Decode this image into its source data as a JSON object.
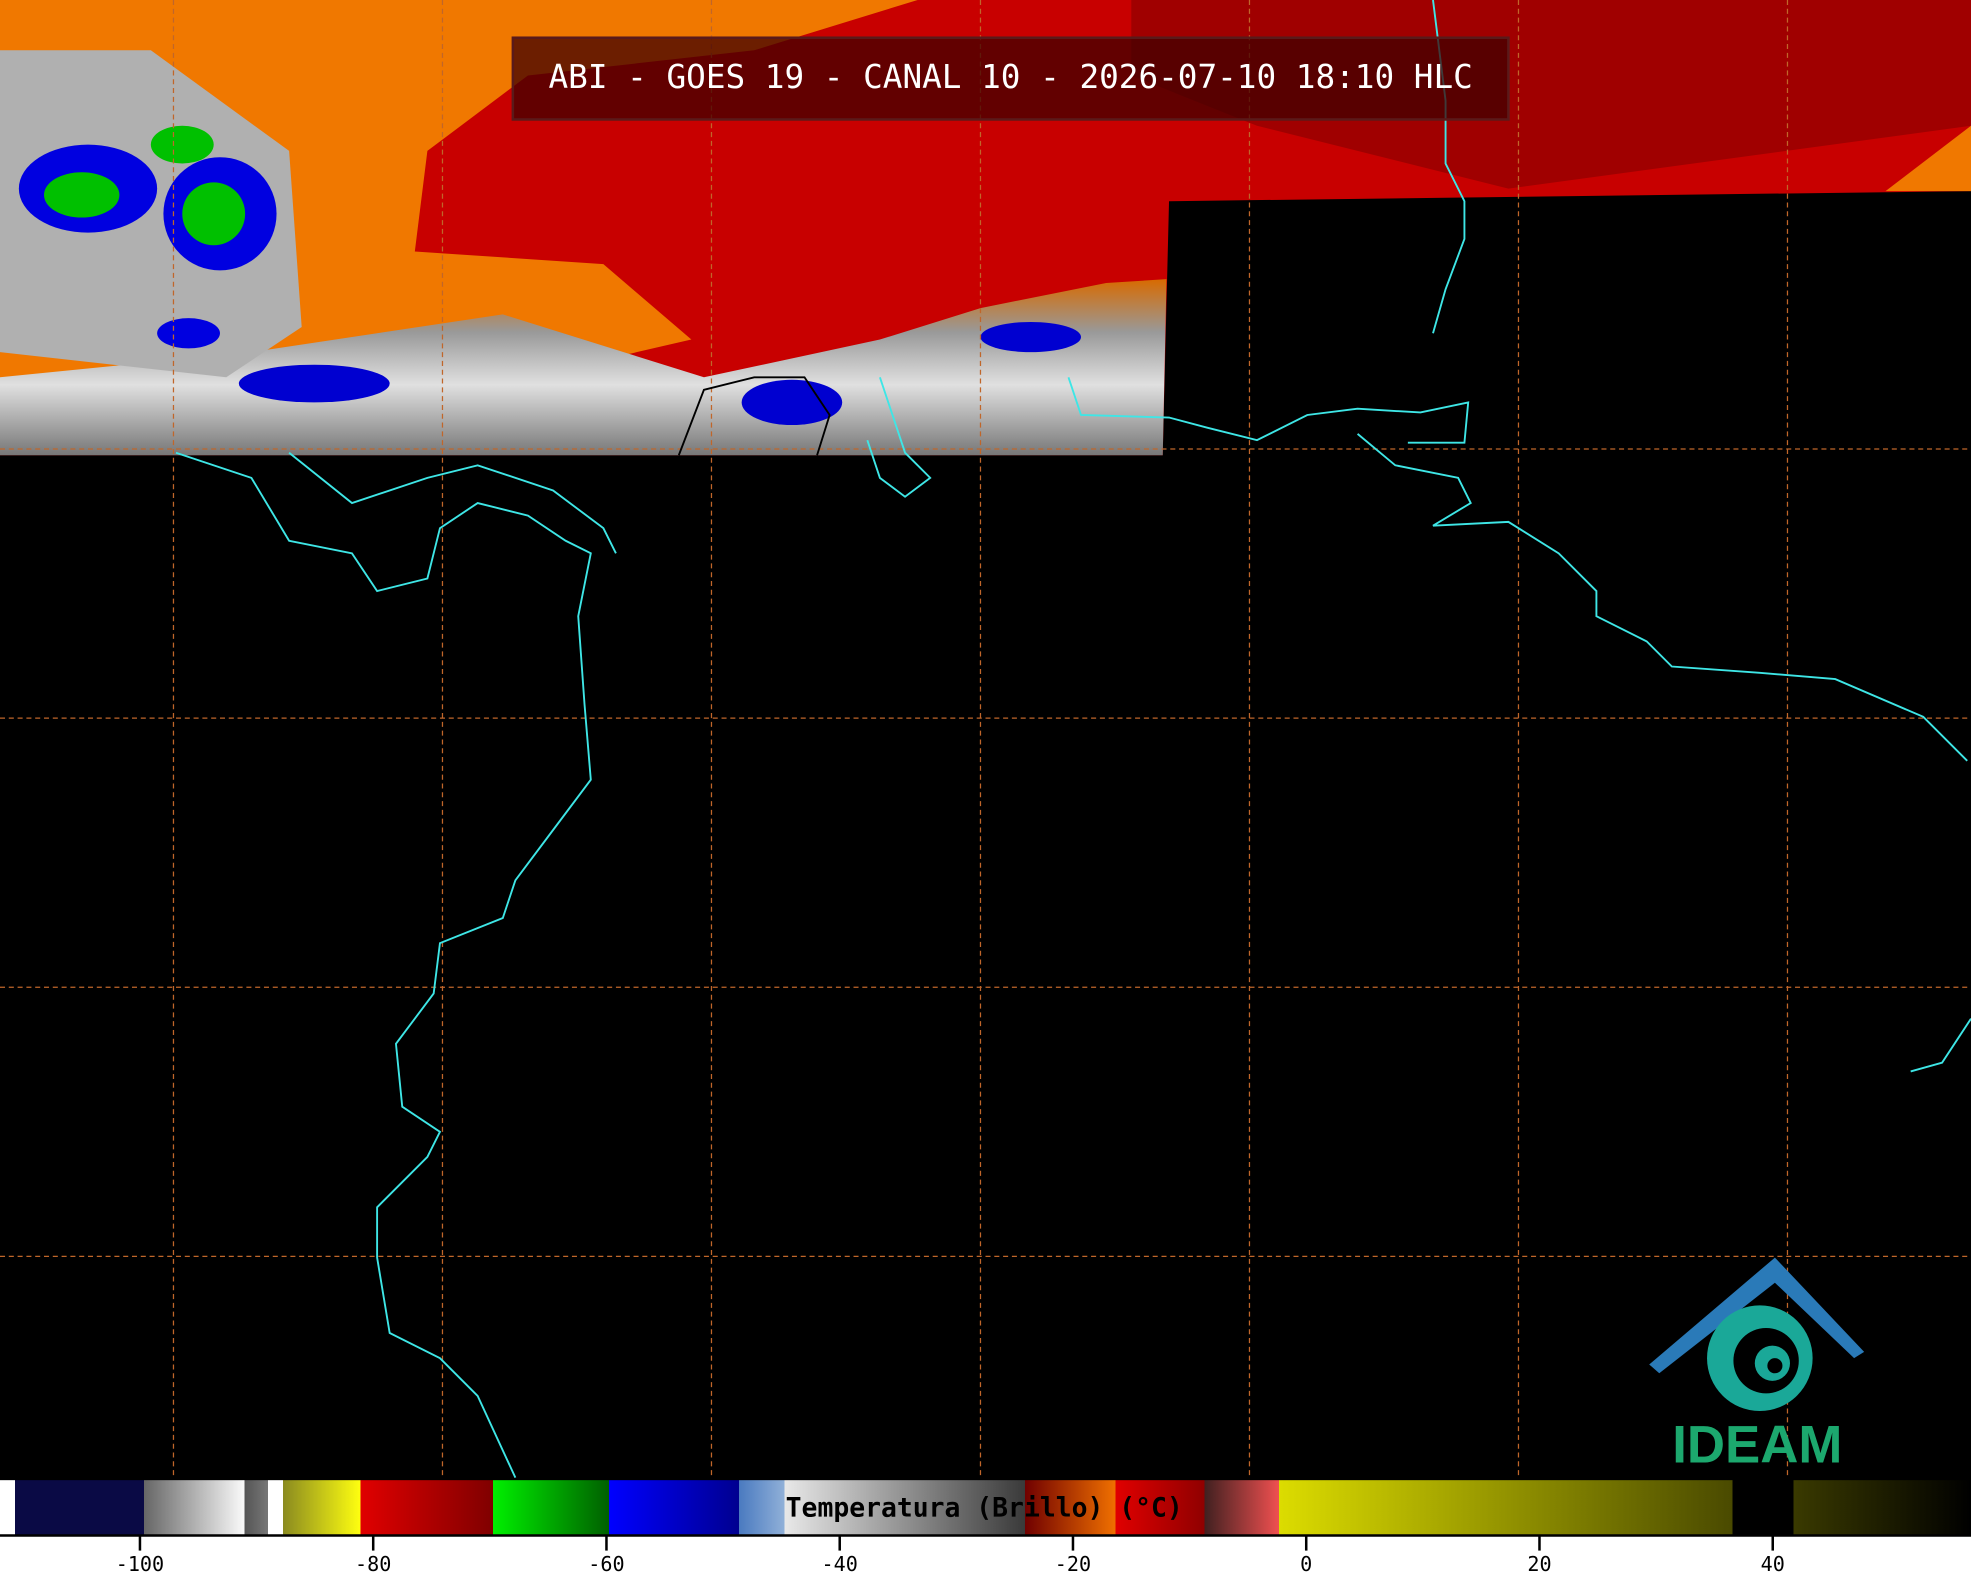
{
  "header": {
    "title": "ABI - GOES 19 - CANAL 10 - 2026-07-10 18:10 HLC"
  },
  "colorbar": {
    "label": "Temperatura (Brillo) (°C)",
    "lim": [
      -112,
      57
    ],
    "ticks": [
      -100,
      -80,
      -60,
      -40,
      -20,
      0,
      20,
      40
    ]
  },
  "logo": {
    "text": "IDEAM"
  }
}
